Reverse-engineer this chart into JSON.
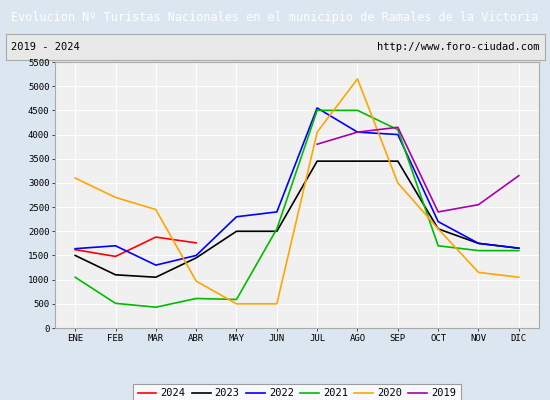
{
  "title": "Evolucion Nº Turistas Nacionales en el municipio de Ramales de la Victoria",
  "subtitle_left": "2019 - 2024",
  "subtitle_right": "http://www.foro-ciudad.com",
  "xlabel_months": [
    "ENE",
    "FEB",
    "MAR",
    "ABR",
    "MAY",
    "JUN",
    "JUL",
    "AGO",
    "SEP",
    "OCT",
    "NOV",
    "DIC"
  ],
  "ylim": [
    0,
    5500
  ],
  "yticks": [
    0,
    500,
    1000,
    1500,
    2000,
    2500,
    3000,
    3500,
    4000,
    4500,
    5000,
    5500
  ],
  "series": {
    "2024": {
      "color": "#ff0000",
      "data": [
        1620,
        1480,
        1880,
        1760,
        null,
        null,
        null,
        null,
        null,
        null,
        null,
        null
      ]
    },
    "2023": {
      "color": "#000000",
      "data": [
        1500,
        1100,
        1050,
        1450,
        2000,
        2000,
        3450,
        3450,
        3450,
        2050,
        1750,
        1650
      ]
    },
    "2022": {
      "color": "#0000ff",
      "data": [
        1640,
        1700,
        1300,
        1500,
        2300,
        2400,
        4550,
        4050,
        4000,
        2200,
        1750,
        1650
      ]
    },
    "2021": {
      "color": "#00bb00",
      "data": [
        1050,
        510,
        430,
        610,
        590,
        2050,
        4500,
        4500,
        4100,
        1700,
        1600,
        1600
      ]
    },
    "2020": {
      "color": "#ffa500",
      "data": [
        3100,
        2700,
        2450,
        970,
        500,
        500,
        4050,
        5150,
        3000,
        2050,
        1150,
        1050
      ]
    },
    "2019": {
      "color": "#aa00aa",
      "data": [
        null,
        null,
        null,
        null,
        null,
        null,
        3800,
        4050,
        4150,
        2400,
        2550,
        3150
      ]
    }
  },
  "title_bg_color": "#4472c4",
  "title_text_color": "#ffffff",
  "plot_bg_color": "#f0f0f0",
  "outer_bg_color": "#dce6f1",
  "grid_color": "#ffffff",
  "subtitle_bg_color": "#e8e8e8"
}
